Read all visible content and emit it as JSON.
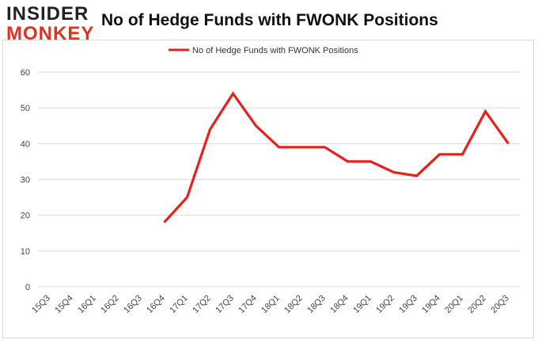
{
  "logo": {
    "line1": "INSIDER",
    "line2": "MONKEY"
  },
  "title": "No of Hedge Funds with FWONK Positions",
  "colors": {
    "line": "#e8211d",
    "grid": "#d9d9d9",
    "axis_text": "#444444"
  },
  "chart_data": {
    "type": "line",
    "title": "No of Hedge Funds with FWONK Positions",
    "xlabel": "",
    "ylabel": "",
    "ylim": [
      0,
      60
    ],
    "yticks": [
      0,
      10,
      20,
      30,
      40,
      50,
      60
    ],
    "grid": true,
    "legend_position": "top-center",
    "categories": [
      "15Q3",
      "15Q4",
      "16Q1",
      "16Q2",
      "16Q3",
      "16Q4",
      "17Q1",
      "17Q2",
      "17Q3",
      "17Q4",
      "18Q1",
      "18Q2",
      "18Q3",
      "18Q4",
      "19Q1",
      "19Q2",
      "19Q3",
      "19Q4",
      "20Q1",
      "20Q2",
      "20Q3"
    ],
    "series": [
      {
        "name": "No of Hedge Funds with FWONK Positions",
        "values": [
          null,
          null,
          null,
          null,
          null,
          18,
          25,
          44,
          54,
          45,
          39,
          39,
          39,
          35,
          35,
          32,
          31,
          37,
          37,
          49,
          40
        ]
      }
    ]
  }
}
